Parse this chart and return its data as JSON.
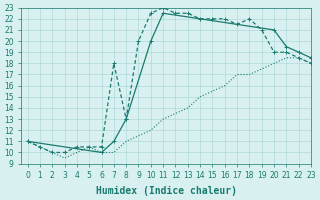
{
  "line1_x": [
    0,
    1,
    2,
    3,
    4,
    5,
    6,
    7,
    8,
    9,
    10,
    11,
    12,
    13,
    14,
    15,
    16,
    17,
    18,
    19,
    20,
    21,
    22,
    23
  ],
  "line1_y": [
    11,
    10.5,
    10,
    10,
    10.5,
    10.5,
    10.5,
    18,
    13,
    20,
    22.5,
    23,
    22.5,
    22.5,
    22,
    22,
    22,
    21.5,
    22,
    21,
    19,
    19,
    18.5,
    18
  ],
  "line2_x": [
    0,
    1,
    2,
    3,
    4,
    5,
    6,
    7,
    8,
    9,
    10,
    11,
    12,
    13,
    14,
    15,
    16,
    17,
    18,
    19,
    20,
    21,
    22,
    23
  ],
  "line2_y": [
    11,
    10.5,
    10,
    9.5,
    10,
    10.5,
    10,
    10,
    11,
    11.5,
    12,
    13,
    13.5,
    14,
    15,
    15.5,
    16,
    17,
    17,
    17.5,
    18,
    18.5,
    18.5,
    18
  ],
  "line3_x": [
    0,
    6,
    7,
    8,
    10,
    11,
    20,
    21,
    22,
    23
  ],
  "line3_y": [
    11,
    10,
    11,
    13,
    20,
    22.5,
    21,
    19.5,
    19,
    18.5
  ],
  "color": "#1a7a6e",
  "bg_color": "#d8f0f0",
  "grid_color": "#b0d8d8",
  "xlabel": "Humidex (Indice chaleur)",
  "xlim": [
    -0.5,
    23
  ],
  "ylim": [
    9,
    23
  ],
  "xticks": [
    0,
    1,
    2,
    3,
    4,
    5,
    6,
    7,
    8,
    9,
    10,
    11,
    12,
    13,
    14,
    15,
    16,
    17,
    18,
    19,
    20,
    21,
    22,
    23
  ],
  "yticks": [
    9,
    10,
    11,
    12,
    13,
    14,
    15,
    16,
    17,
    18,
    19,
    20,
    21,
    22,
    23
  ],
  "tick_fontsize": 5.5,
  "xlabel_fontsize": 7
}
